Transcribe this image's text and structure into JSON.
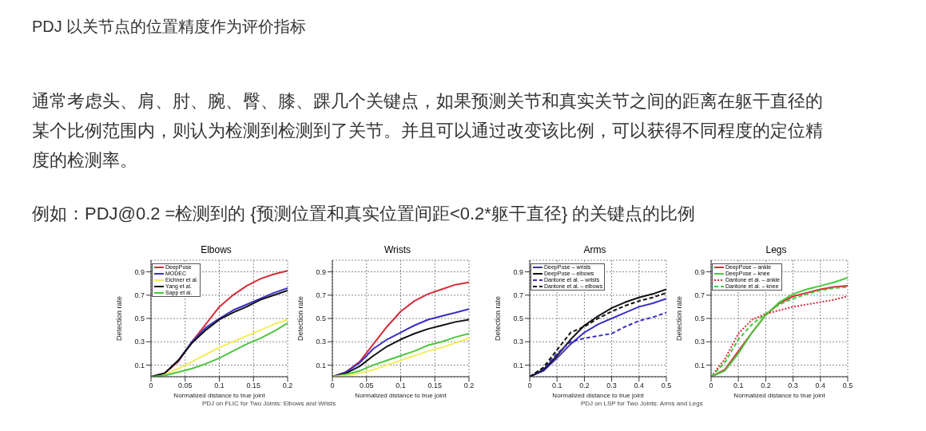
{
  "chart_data": [
    {
      "type": "other",
      "title": "PDJ 以关节点的位置精度作为评价指标",
      "annotations": [
        "通常考虑头、肩、肘、腕、臀、膝、踝几个关键点，如果预测关节和真实关节之间的距离在躯干直径的某个比例范围内，则认为检测到检测到了关节。并且可以通过改变该比例，可以获得不同程度的定位精度的检测率。",
        "例如：PDJ@0.2 =检测到的 {预测位置和真实位置间距<0.2*躯干直径} 的关键点的比例"
      ]
    },
    {
      "type": "line",
      "title": "Elbows",
      "xlabel": "Normalized distance to true joint",
      "ylabel": "Detection rate",
      "x": [
        0,
        0.02,
        0.04,
        0.06,
        0.08,
        0.1,
        0.12,
        0.14,
        0.16,
        0.18,
        0.2
      ],
      "xlim": [
        0,
        0.2
      ],
      "xticks": [
        0,
        0.05,
        0.1,
        0.15,
        0.2
      ],
      "ylim": [
        0,
        1
      ],
      "yticks": [
        0.1,
        0.3,
        0.5,
        0.7,
        0.9
      ],
      "grid": true,
      "legend": "top left",
      "annotations": [
        "PDJ on FLIC for Two Joints: Elbows and Wrists"
      ],
      "series": [
        {
          "name": "DeepPose",
          "color": "#d62c3a",
          "values": [
            0,
            0.03,
            0.13,
            0.3,
            0.45,
            0.6,
            0.7,
            0.78,
            0.84,
            0.88,
            0.91
          ]
        },
        {
          "name": "MODEC",
          "color": "#3a2fc4",
          "values": [
            0,
            0.03,
            0.14,
            0.3,
            0.42,
            0.5,
            0.57,
            0.62,
            0.67,
            0.72,
            0.76
          ]
        },
        {
          "name": "Eichner et al.",
          "color": "#f2ee5a",
          "values": [
            0,
            0.02,
            0.07,
            0.13,
            0.19,
            0.25,
            0.3,
            0.35,
            0.4,
            0.45,
            0.49
          ]
        },
        {
          "name": "Yang et al.",
          "color": "#111111",
          "values": [
            0,
            0.03,
            0.14,
            0.29,
            0.4,
            0.49,
            0.55,
            0.6,
            0.66,
            0.7,
            0.74
          ]
        },
        {
          "name": "Sapp et al.",
          "color": "#4cc73e",
          "values": [
            0,
            0.01,
            0.04,
            0.07,
            0.11,
            0.16,
            0.22,
            0.28,
            0.33,
            0.39,
            0.46
          ]
        }
      ]
    },
    {
      "type": "line",
      "title": "Wrists",
      "xlabel": "Normalized distance to true joint",
      "ylabel": "Detection rate",
      "x": [
        0,
        0.02,
        0.04,
        0.06,
        0.08,
        0.1,
        0.12,
        0.14,
        0.16,
        0.18,
        0.2
      ],
      "xlim": [
        0,
        0.2
      ],
      "xticks": [
        0,
        0.05,
        0.1,
        0.15,
        0.2
      ],
      "ylim": [
        0,
        1
      ],
      "yticks": [
        0.1,
        0.3,
        0.5,
        0.7,
        0.9
      ],
      "grid": true,
      "series": [
        {
          "color": "#d62c3a",
          "values": [
            0,
            0.04,
            0.13,
            0.28,
            0.43,
            0.56,
            0.65,
            0.71,
            0.75,
            0.79,
            0.81
          ]
        },
        {
          "color": "#3a2fc4",
          "values": [
            0,
            0.04,
            0.12,
            0.24,
            0.32,
            0.38,
            0.44,
            0.49,
            0.52,
            0.55,
            0.58
          ]
        },
        {
          "color": "#111111",
          "values": [
            0,
            0.03,
            0.09,
            0.18,
            0.26,
            0.32,
            0.37,
            0.41,
            0.44,
            0.47,
            0.49
          ]
        },
        {
          "color": "#4cc73e",
          "values": [
            0,
            0.02,
            0.05,
            0.1,
            0.14,
            0.18,
            0.22,
            0.27,
            0.3,
            0.34,
            0.37
          ]
        },
        {
          "color": "#f2ee5a",
          "values": [
            0,
            0.01,
            0.03,
            0.06,
            0.1,
            0.14,
            0.18,
            0.22,
            0.25,
            0.29,
            0.33
          ]
        }
      ]
    },
    {
      "type": "line",
      "title": "Arms",
      "xlabel": "Normalized distance to true joint",
      "ylabel": "Detection rate",
      "x": [
        0,
        0.05,
        0.1,
        0.15,
        0.2,
        0.25,
        0.3,
        0.35,
        0.4,
        0.45,
        0.5
      ],
      "xlim": [
        0,
        0.5
      ],
      "xticks": [
        0,
        0.1,
        0.2,
        0.3,
        0.4,
        0.5
      ],
      "ylim": [
        0,
        1
      ],
      "yticks": [
        0.1,
        0.3,
        0.5,
        0.7,
        0.9
      ],
      "grid": true,
      "legend": "top left",
      "annotations": [
        "PDJ on LSP for Two Joints: Arms and Legs"
      ],
      "series": [
        {
          "name": "DeepPose – wrists",
          "color": "#3a2fc4",
          "line_style": "solid",
          "values": [
            0,
            0.05,
            0.16,
            0.28,
            0.38,
            0.45,
            0.5,
            0.55,
            0.6,
            0.63,
            0.67
          ]
        },
        {
          "name": "DeepPose – elbows",
          "color": "#111111",
          "line_style": "solid",
          "values": [
            0,
            0.06,
            0.18,
            0.32,
            0.44,
            0.52,
            0.59,
            0.64,
            0.68,
            0.71,
            0.75
          ]
        },
        {
          "name": "Dantone et al. – wrists",
          "color": "#3a2fc4",
          "line_style": "dashed",
          "values": [
            0,
            0.07,
            0.2,
            0.3,
            0.33,
            0.35,
            0.37,
            0.43,
            0.48,
            0.51,
            0.55
          ]
        },
        {
          "name": "Dantone et al. – elbows",
          "color": "#111111",
          "line_style": "dashed",
          "values": [
            0,
            0.08,
            0.23,
            0.38,
            0.43,
            0.5,
            0.56,
            0.61,
            0.65,
            0.68,
            0.72
          ]
        }
      ]
    },
    {
      "type": "line",
      "title": "Legs",
      "xlabel": "Normalized distance to true joint",
      "ylabel": "Detection rate",
      "x": [
        0,
        0.05,
        0.1,
        0.15,
        0.2,
        0.25,
        0.3,
        0.35,
        0.4,
        0.45,
        0.5
      ],
      "xlim": [
        0,
        0.5
      ],
      "xticks": [
        0,
        0.1,
        0.2,
        0.3,
        0.4,
        0.5
      ],
      "ylim": [
        0,
        1
      ],
      "yticks": [
        0.1,
        0.3,
        0.5,
        0.7,
        0.9
      ],
      "grid": true,
      "legend": "top left",
      "series": [
        {
          "name": "DeepPose – ankle",
          "color": "#d62c3a",
          "line_style": "solid",
          "values": [
            0,
            0.06,
            0.22,
            0.38,
            0.53,
            0.63,
            0.69,
            0.72,
            0.75,
            0.77,
            0.78
          ]
        },
        {
          "name": "DeepPose – knee",
          "color": "#4cc73e",
          "line_style": "solid",
          "values": [
            0,
            0.05,
            0.2,
            0.38,
            0.53,
            0.64,
            0.71,
            0.75,
            0.78,
            0.81,
            0.85
          ]
        },
        {
          "name": "Dantone et al. – ankle",
          "color": "#d62c3a",
          "line_style": "dotted",
          "values": [
            0,
            0.15,
            0.37,
            0.49,
            0.54,
            0.57,
            0.6,
            0.62,
            0.64,
            0.66,
            0.69
          ]
        },
        {
          "name": "Dantone et al. – knee",
          "color": "#4cc73e",
          "line_style": "dashed",
          "values": [
            0,
            0.12,
            0.32,
            0.45,
            0.54,
            0.62,
            0.67,
            0.71,
            0.74,
            0.76,
            0.77
          ]
        }
      ]
    }
  ]
}
